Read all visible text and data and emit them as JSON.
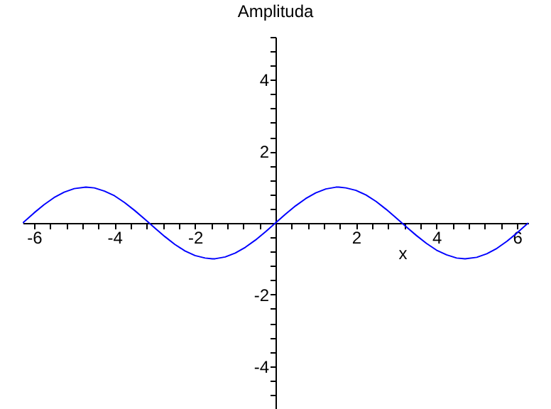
{
  "chart_data": {
    "type": "line",
    "title": "Amplituda",
    "xlabel": "x",
    "x": [
      -6.28,
      -6,
      -5.75,
      -5.5,
      -5.25,
      -5,
      -4.71,
      -4.5,
      -4.25,
      -4,
      -3.75,
      -3.5,
      -3.25,
      -3,
      -2.75,
      -2.5,
      -2.25,
      -2,
      -1.75,
      -1.57,
      -1.5,
      -1.25,
      -1,
      -0.75,
      -0.5,
      -0.25,
      0,
      0.25,
      0.5,
      0.75,
      1,
      1.25,
      1.5,
      1.57,
      1.75,
      2,
      2.25,
      2.5,
      2.75,
      3,
      3.25,
      3.5,
      3.75,
      4,
      4.25,
      4.5,
      4.71,
      5,
      5.25,
      5.5,
      5.75,
      6,
      6.28
    ],
    "series": [
      {
        "color": "#0000ff",
        "values": [
          0,
          0.28,
          0.51,
          0.71,
          0.86,
          0.96,
          1,
          0.98,
          0.89,
          0.76,
          0.57,
          0.35,
          0.11,
          -0.14,
          -0.38,
          -0.6,
          -0.78,
          -0.91,
          -0.98,
          -1,
          -1,
          -0.95,
          -0.84,
          -0.68,
          -0.48,
          -0.25,
          0,
          0.25,
          0.48,
          0.68,
          0.84,
          0.95,
          1,
          1,
          0.98,
          0.91,
          0.78,
          0.6,
          0.38,
          0.14,
          -0.11,
          -0.35,
          -0.57,
          -0.76,
          -0.89,
          -0.98,
          -1,
          -0.96,
          -0.86,
          -0.71,
          -0.51,
          -0.28,
          0
        ]
      }
    ],
    "xlim": [
      -6.28,
      6.28
    ],
    "ylim": [
      -5.2,
      5.2
    ],
    "xticks": [
      -6,
      {
        "value": -5.6,
        "label": null
      },
      {
        "value": -5.2,
        "label": null
      },
      {
        "value": -4.8,
        "label": null
      },
      {
        "value": -4.4,
        "label": null
      },
      -4,
      {
        "value": -3.6,
        "label": null
      },
      {
        "value": -3.2,
        "label": null
      },
      {
        "value": -2.8,
        "label": null
      },
      {
        "value": -2.4,
        "label": null
      },
      -2,
      {
        "value": -1.6,
        "label": null
      },
      {
        "value": -1.2,
        "label": null
      },
      {
        "value": -0.8,
        "label": null
      },
      {
        "value": -0.4,
        "label": null
      },
      {
        "value": 0.4,
        "label": null
      },
      {
        "value": 0.8,
        "label": null
      },
      {
        "value": 1.2,
        "label": null
      },
      {
        "value": 1.6,
        "label": null
      },
      2,
      {
        "value": 2.4,
        "label": null
      },
      {
        "value": 2.8,
        "label": null
      },
      {
        "value": 3.2,
        "label": null
      },
      {
        "value": 3.6,
        "label": null
      },
      4,
      {
        "value": 4.4,
        "label": null
      },
      {
        "value": 4.8,
        "label": null
      },
      {
        "value": 5.2,
        "label": null
      },
      {
        "value": 5.6,
        "label": null
      },
      6
    ],
    "yticks": [
      {
        "value": -5.2,
        "label": null
      },
      {
        "value": -4.8,
        "label": null
      },
      {
        "value": -4.4,
        "label": null
      },
      -4,
      {
        "value": -3.6,
        "label": null
      },
      {
        "value": -3.2,
        "label": null
      },
      {
        "value": -2.8,
        "label": null
      },
      {
        "value": -2.4,
        "label": null
      },
      -2,
      {
        "value": -1.6,
        "label": null
      },
      {
        "value": -1.2,
        "label": null
      },
      {
        "value": -0.8,
        "label": null
      },
      {
        "value": -0.4,
        "label": null
      },
      {
        "value": 0.4,
        "label": null
      },
      {
        "value": 0.8,
        "label": null
      },
      {
        "value": 1.2,
        "label": null
      },
      {
        "value": 1.6,
        "label": null
      },
      2,
      {
        "value": 2.4,
        "label": null
      },
      {
        "value": 2.8,
        "label": null
      },
      {
        "value": 3.2,
        "label": null
      },
      {
        "value": 3.6,
        "label": null
      },
      4,
      {
        "value": 4.4,
        "label": null
      },
      {
        "value": 4.8,
        "label": null
      },
      {
        "value": 5.2,
        "label": null
      }
    ],
    "grid": false,
    "marker": "none",
    "line_style": "solid"
  }
}
